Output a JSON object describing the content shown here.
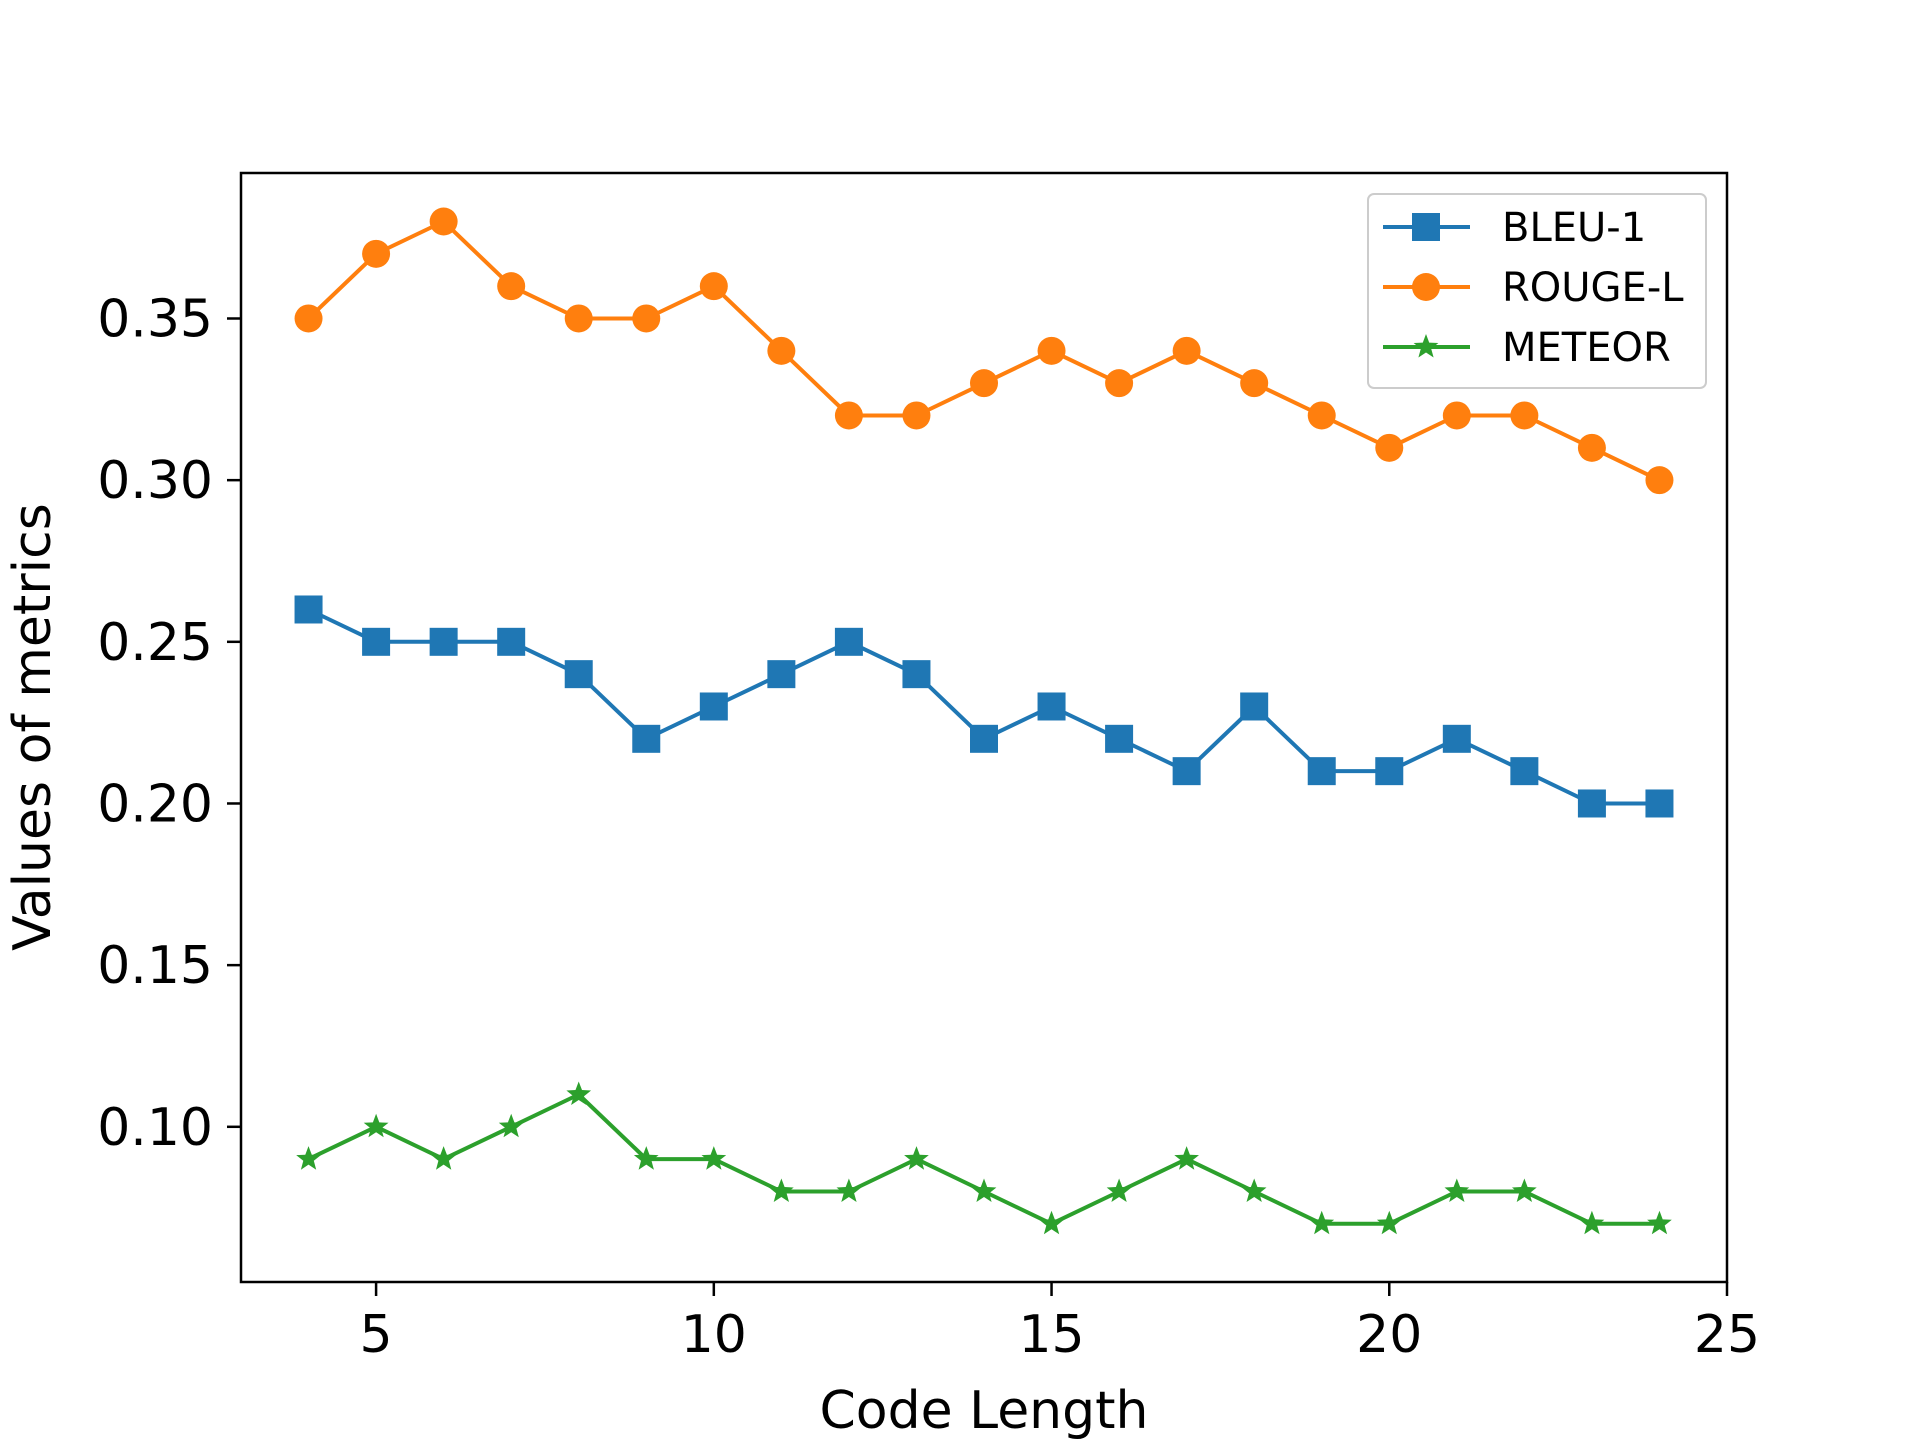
{
  "chart_data": {
    "type": "line",
    "title": "",
    "xlabel": "Code Length",
    "ylabel": "Values of metrics",
    "xlim": [
      3,
      25
    ],
    "ylim": [
      0.052,
      0.395
    ],
    "xticks": [
      5,
      10,
      15,
      20,
      25
    ],
    "xtick_labels": [
      "5",
      "10",
      "15",
      "20",
      "25"
    ],
    "yticks": [
      0.1,
      0.15,
      0.2,
      0.25,
      0.3,
      0.35
    ],
    "ytick_labels": [
      "0.10",
      "0.15",
      "0.20",
      "0.25",
      "0.30",
      "0.35"
    ],
    "grid": false,
    "legend_position": "top-right",
    "x": [
      4,
      5,
      6,
      7,
      8,
      9,
      10,
      11,
      12,
      13,
      14,
      15,
      16,
      17,
      18,
      19,
      20,
      21,
      22,
      23,
      24
    ],
    "series": [
      {
        "name": "BLEU-1",
        "color": "#1f77b4",
        "marker": "square",
        "values": [
          0.26,
          0.25,
          0.25,
          0.25,
          0.24,
          0.22,
          0.23,
          0.24,
          0.25,
          0.24,
          0.22,
          0.23,
          0.22,
          0.21,
          0.23,
          0.21,
          0.21,
          0.22,
          0.21,
          0.2,
          0.2
        ]
      },
      {
        "name": "ROUGE-L",
        "color": "#ff7f0e",
        "marker": "circle",
        "values": [
          0.35,
          0.37,
          0.38,
          0.36,
          0.35,
          0.35,
          0.36,
          0.34,
          0.32,
          0.32,
          0.33,
          0.34,
          0.33,
          0.34,
          0.33,
          0.32,
          0.31,
          0.32,
          0.32,
          0.31,
          0.3
        ]
      },
      {
        "name": "METEOR",
        "color": "#2ca02c",
        "marker": "star",
        "values": [
          0.09,
          0.1,
          0.09,
          0.1,
          0.11,
          0.09,
          0.09,
          0.08,
          0.08,
          0.09,
          0.08,
          0.07,
          0.08,
          0.09,
          0.08,
          0.07,
          0.07,
          0.08,
          0.08,
          0.07,
          0.07
        ]
      }
    ]
  }
}
